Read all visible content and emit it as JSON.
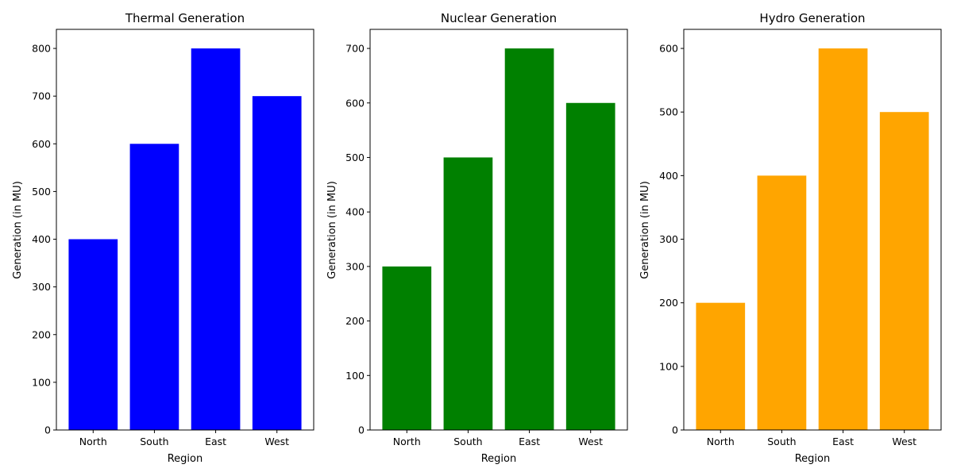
{
  "chart_data": [
    {
      "type": "bar",
      "title": "Thermal Generation",
      "xlabel": "Region",
      "ylabel": "Generation (in MU)",
      "categories": [
        "North",
        "South",
        "East",
        "West"
      ],
      "values": [
        400,
        600,
        800,
        700
      ],
      "yticks": [
        0,
        100,
        200,
        300,
        400,
        500,
        600,
        700,
        800
      ],
      "ylim": [
        0,
        840
      ],
      "color": "#0000ff",
      "grid": false
    },
    {
      "type": "bar",
      "title": "Nuclear Generation",
      "xlabel": "Region",
      "ylabel": "Generation (in MU)",
      "categories": [
        "North",
        "South",
        "East",
        "West"
      ],
      "values": [
        300,
        500,
        700,
        600
      ],
      "yticks": [
        0,
        100,
        200,
        300,
        400,
        500,
        600,
        700
      ],
      "ylim": [
        0,
        735
      ],
      "color": "#008000",
      "grid": false
    },
    {
      "type": "bar",
      "title": "Hydro Generation",
      "xlabel": "Region",
      "ylabel": "Generation (in MU)",
      "categories": [
        "North",
        "South",
        "East",
        "West"
      ],
      "values": [
        200,
        400,
        600,
        500
      ],
      "yticks": [
        0,
        100,
        200,
        300,
        400,
        500,
        600
      ],
      "ylim": [
        0,
        630
      ],
      "color": "#ffa500",
      "grid": false
    }
  ]
}
